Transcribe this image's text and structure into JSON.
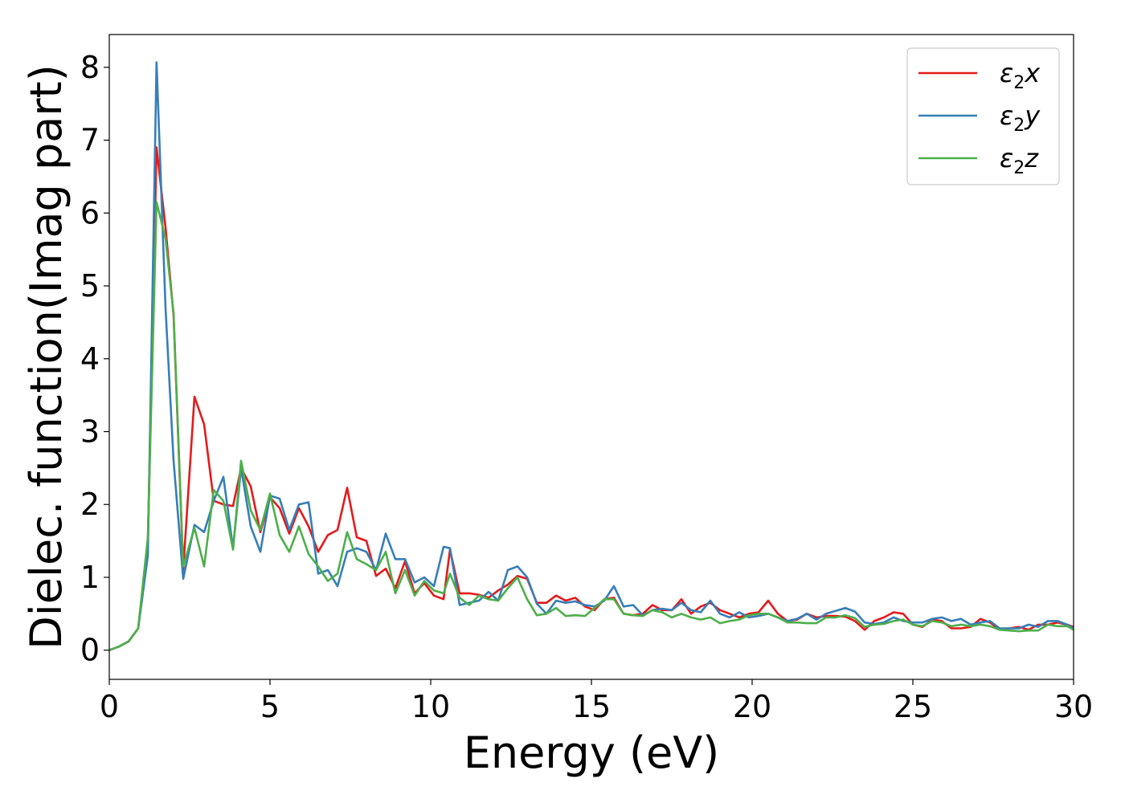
{
  "chart_data": {
    "type": "line",
    "xlabel": "Energy (eV)",
    "ylabel": "Dielec. function(Imag part)",
    "xlim": [
      0,
      30
    ],
    "ylim": [
      -0.4,
      8.45
    ],
    "xticks": [
      0,
      5,
      10,
      15,
      20,
      25,
      30
    ],
    "yticks": [
      0,
      1,
      2,
      3,
      4,
      5,
      6,
      7,
      8
    ],
    "grid": false,
    "legend_position": "top-right",
    "series": [
      {
        "name": "ε2x",
        "name_base": "ε",
        "name_sub": "2",
        "name_suffix": "x",
        "color": "#e41a1c",
        "x": [
          0,
          0.3,
          0.6,
          0.9,
          1.2,
          1.47,
          1.75,
          2.0,
          2.3,
          2.65,
          2.95,
          3.25,
          3.55,
          3.85,
          4.1,
          4.4,
          4.7,
          5.0,
          5.3,
          5.6,
          5.9,
          6.2,
          6.5,
          6.8,
          7.1,
          7.4,
          7.7,
          8.0,
          8.3,
          8.6,
          8.9,
          9.2,
          9.5,
          9.8,
          10.1,
          10.4,
          10.6,
          10.9,
          11.2,
          11.5,
          11.8,
          12.1,
          12.4,
          12.7,
          13.0,
          13.3,
          13.6,
          13.9,
          14.2,
          14.5,
          14.8,
          15.1,
          15.4,
          15.7,
          16.0,
          16.3,
          16.6,
          16.9,
          17.2,
          17.5,
          17.8,
          18.1,
          18.4,
          18.7,
          19.0,
          19.3,
          19.6,
          19.9,
          20.2,
          20.5,
          20.8,
          21.1,
          21.4,
          21.7,
          22.0,
          22.3,
          22.6,
          22.9,
          23.2,
          23.5,
          23.8,
          24.1,
          24.4,
          24.7,
          25.0,
          25.3,
          25.6,
          25.9,
          26.2,
          26.5,
          26.8,
          27.1,
          27.4,
          27.7,
          28.0,
          28.3,
          28.6,
          28.9,
          29.2,
          29.5,
          29.8,
          30.0
        ],
        "y": [
          0,
          0.05,
          0.12,
          0.3,
          1.5,
          6.9,
          5.8,
          4.6,
          1.1,
          3.48,
          3.1,
          2.05,
          2.0,
          1.98,
          2.5,
          2.25,
          1.62,
          2.1,
          1.95,
          1.6,
          1.95,
          1.7,
          1.35,
          1.58,
          1.65,
          2.23,
          1.55,
          1.5,
          1.02,
          1.12,
          0.85,
          1.22,
          0.78,
          0.92,
          0.75,
          0.7,
          1.38,
          0.78,
          0.78,
          0.76,
          0.72,
          0.82,
          0.9,
          1.02,
          0.98,
          0.65,
          0.65,
          0.75,
          0.68,
          0.72,
          0.6,
          0.55,
          0.7,
          0.72,
          0.5,
          0.48,
          0.5,
          0.62,
          0.55,
          0.55,
          0.7,
          0.5,
          0.6,
          0.65,
          0.55,
          0.5,
          0.45,
          0.5,
          0.52,
          0.68,
          0.5,
          0.4,
          0.42,
          0.5,
          0.45,
          0.47,
          0.47,
          0.46,
          0.4,
          0.28,
          0.4,
          0.45,
          0.52,
          0.5,
          0.35,
          0.32,
          0.42,
          0.4,
          0.3,
          0.3,
          0.32,
          0.43,
          0.38,
          0.28,
          0.3,
          0.32,
          0.28,
          0.35,
          0.35,
          0.38,
          0.35,
          0.32
        ]
      },
      {
        "name": "ε2y",
        "name_base": "ε",
        "name_sub": "2",
        "name_suffix": "y",
        "color": "#377eb8",
        "x": [
          0,
          0.3,
          0.6,
          0.9,
          1.2,
          1.47,
          1.75,
          2.0,
          2.3,
          2.65,
          2.95,
          3.25,
          3.55,
          3.85,
          4.1,
          4.4,
          4.7,
          5.0,
          5.3,
          5.6,
          5.9,
          6.2,
          6.5,
          6.8,
          7.1,
          7.4,
          7.7,
          8.0,
          8.3,
          8.6,
          8.9,
          9.2,
          9.5,
          9.8,
          10.1,
          10.4,
          10.6,
          10.9,
          11.2,
          11.5,
          11.8,
          12.1,
          12.4,
          12.7,
          13.0,
          13.3,
          13.6,
          13.9,
          14.2,
          14.5,
          14.8,
          15.1,
          15.4,
          15.7,
          16.0,
          16.3,
          16.6,
          16.9,
          17.2,
          17.5,
          17.8,
          18.1,
          18.4,
          18.7,
          19.0,
          19.3,
          19.6,
          19.9,
          20.2,
          20.5,
          20.8,
          21.1,
          21.4,
          21.7,
          22.0,
          22.3,
          22.6,
          22.9,
          23.2,
          23.5,
          23.8,
          24.1,
          24.4,
          24.7,
          25.0,
          25.3,
          25.6,
          25.9,
          26.2,
          26.5,
          26.8,
          27.1,
          27.4,
          27.7,
          28.0,
          28.3,
          28.6,
          28.9,
          29.2,
          29.5,
          29.8,
          30.0
        ],
        "y": [
          0,
          0.05,
          0.12,
          0.3,
          1.3,
          8.07,
          4.7,
          2.6,
          0.98,
          1.72,
          1.62,
          2.05,
          2.38,
          1.4,
          2.5,
          1.7,
          1.35,
          2.12,
          2.08,
          1.65,
          2.0,
          2.03,
          1.05,
          1.1,
          0.88,
          1.35,
          1.4,
          1.35,
          1.1,
          1.6,
          1.25,
          1.25,
          0.93,
          1.0,
          0.88,
          1.42,
          1.4,
          0.62,
          0.65,
          0.68,
          0.8,
          0.68,
          1.1,
          1.15,
          1.0,
          0.64,
          0.5,
          0.68,
          0.65,
          0.67,
          0.62,
          0.6,
          0.68,
          0.88,
          0.6,
          0.62,
          0.48,
          0.55,
          0.57,
          0.55,
          0.65,
          0.55,
          0.52,
          0.68,
          0.5,
          0.45,
          0.52,
          0.45,
          0.47,
          0.5,
          0.45,
          0.4,
          0.43,
          0.5,
          0.42,
          0.5,
          0.54,
          0.58,
          0.53,
          0.38,
          0.36,
          0.38,
          0.45,
          0.4,
          0.38,
          0.38,
          0.43,
          0.45,
          0.4,
          0.43,
          0.35,
          0.38,
          0.4,
          0.3,
          0.3,
          0.3,
          0.35,
          0.32,
          0.4,
          0.4,
          0.35,
          0.3
        ]
      },
      {
        "name": "ε2z",
        "name_base": "ε",
        "name_sub": "2",
        "name_suffix": "z",
        "color": "#4daf4a",
        "x": [
          0,
          0.3,
          0.6,
          0.9,
          1.2,
          1.47,
          1.75,
          2.0,
          2.3,
          2.65,
          2.95,
          3.25,
          3.55,
          3.85,
          4.1,
          4.4,
          4.7,
          5.0,
          5.3,
          5.6,
          5.9,
          6.2,
          6.5,
          6.8,
          7.1,
          7.4,
          7.7,
          8.0,
          8.3,
          8.6,
          8.9,
          9.2,
          9.5,
          9.8,
          10.1,
          10.4,
          10.6,
          10.9,
          11.2,
          11.5,
          11.8,
          12.1,
          12.4,
          12.7,
          13.0,
          13.3,
          13.6,
          13.9,
          14.2,
          14.5,
          14.8,
          15.1,
          15.4,
          15.7,
          16.0,
          16.3,
          16.6,
          16.9,
          17.2,
          17.5,
          17.8,
          18.1,
          18.4,
          18.7,
          19.0,
          19.3,
          19.6,
          19.9,
          20.2,
          20.5,
          20.8,
          21.1,
          21.4,
          21.7,
          22.0,
          22.3,
          22.6,
          22.9,
          23.2,
          23.5,
          23.8,
          24.1,
          24.4,
          24.7,
          25.0,
          25.3,
          25.6,
          25.9,
          26.2,
          26.5,
          26.8,
          27.1,
          27.4,
          27.7,
          28.0,
          28.3,
          28.6,
          28.9,
          29.2,
          29.5,
          29.8,
          30.0
        ],
        "y": [
          0,
          0.05,
          0.12,
          0.3,
          1.55,
          6.15,
          5.65,
          4.62,
          1.15,
          1.68,
          1.15,
          2.2,
          2.05,
          1.38,
          2.6,
          1.92,
          1.65,
          2.15,
          1.58,
          1.35,
          1.7,
          1.32,
          1.15,
          0.95,
          1.05,
          1.62,
          1.25,
          1.18,
          1.1,
          1.35,
          0.78,
          1.1,
          0.75,
          0.95,
          0.82,
          0.78,
          1.05,
          0.72,
          0.62,
          0.75,
          0.7,
          0.68,
          0.85,
          1.0,
          0.7,
          0.48,
          0.5,
          0.58,
          0.47,
          0.48,
          0.47,
          0.58,
          0.7,
          0.7,
          0.5,
          0.48,
          0.47,
          0.55,
          0.52,
          0.45,
          0.5,
          0.45,
          0.42,
          0.45,
          0.37,
          0.4,
          0.42,
          0.48,
          0.5,
          0.5,
          0.45,
          0.38,
          0.38,
          0.37,
          0.37,
          0.45,
          0.45,
          0.48,
          0.44,
          0.32,
          0.35,
          0.36,
          0.4,
          0.42,
          0.35,
          0.33,
          0.4,
          0.38,
          0.33,
          0.35,
          0.33,
          0.35,
          0.33,
          0.28,
          0.27,
          0.26,
          0.27,
          0.27,
          0.35,
          0.33,
          0.33,
          0.28
        ]
      }
    ]
  }
}
